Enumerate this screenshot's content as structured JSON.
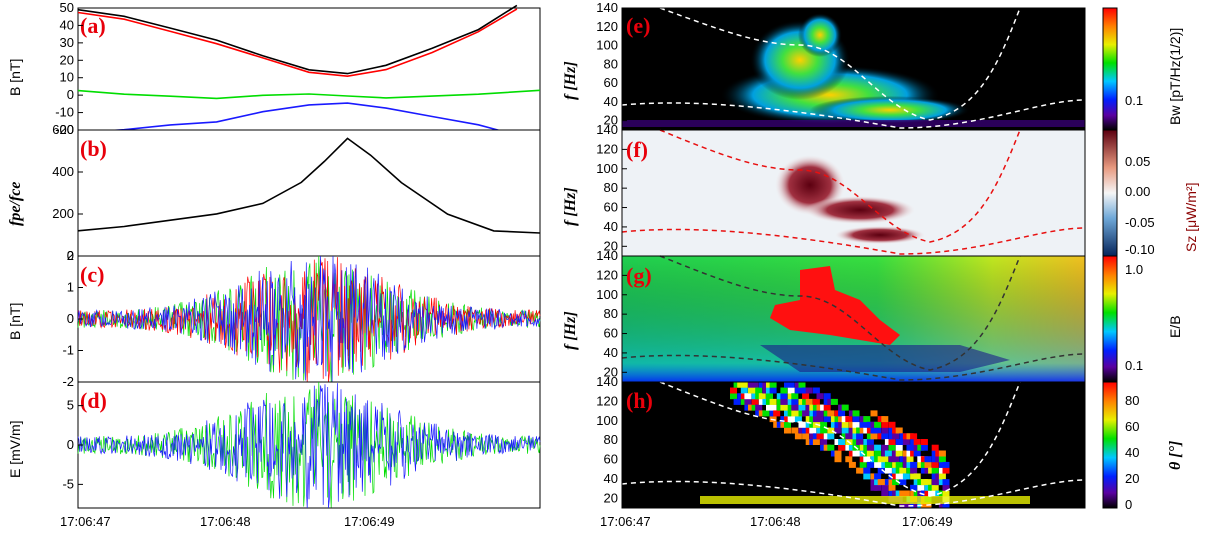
{
  "colors": {
    "bx": "#000000",
    "by": "#ff0000",
    "bz_green": "#00dd00",
    "bz_blue": "#1a1aff",
    "panel_label": "#e8000b",
    "sz_axis": "#8b0000"
  },
  "time_axis": {
    "ticks": [
      "17:06:47",
      "17:06:48",
      "17:06:49"
    ]
  },
  "chart_data": [
    {
      "panel": "a",
      "label": "(a)",
      "type": "line",
      "ylabel": "B [nT]",
      "ylim": [
        -20,
        50
      ],
      "yticks": [
        "50",
        "40",
        "30",
        "20",
        "10",
        "0",
        "-10",
        "-20"
      ],
      "series": [
        {
          "color": "#000000",
          "x": [
            0,
            0.3,
            0.6,
            0.9,
            1.2,
            1.5,
            1.75,
            2.0,
            2.3,
            2.6,
            2.85
          ],
          "y": [
            49,
            45,
            38,
            31,
            22,
            14,
            12,
            17,
            27,
            38,
            52
          ]
        },
        {
          "color": "#ff0000",
          "x": [
            0,
            0.3,
            0.6,
            0.9,
            1.2,
            1.5,
            1.75,
            2.0,
            2.3,
            2.6,
            2.85
          ],
          "y": [
            47,
            43,
            36,
            29,
            21,
            13,
            11,
            15,
            25,
            37,
            50
          ]
        },
        {
          "color": "#00dd00",
          "x": [
            0,
            0.3,
            0.6,
            0.9,
            1.2,
            1.5,
            1.75,
            2.0,
            2.3,
            2.6,
            3.0
          ],
          "y": [
            2,
            0,
            -1,
            -2,
            0,
            1,
            0,
            -1,
            0,
            1,
            3
          ]
        },
        {
          "color": "#1a1aff",
          "x": [
            0,
            0.3,
            0.6,
            0.9,
            1.2,
            1.5,
            1.75,
            2.0,
            2.3,
            2.6,
            2.8
          ],
          "y": [
            -22,
            -20,
            -17,
            -15,
            -9,
            -5,
            -4,
            -7,
            -12,
            -17,
            -22
          ]
        }
      ]
    },
    {
      "panel": "b",
      "label": "(b)",
      "type": "line",
      "ylabel": "fpe/fce",
      "ylim": [
        0,
        600
      ],
      "yticks": [
        "0",
        "200",
        "400",
        "600"
      ],
      "series": [
        {
          "color": "#000000",
          "x": [
            0,
            0.3,
            0.6,
            0.9,
            1.2,
            1.45,
            1.6,
            1.75,
            1.9,
            2.1,
            2.4,
            2.7,
            3.0
          ],
          "y": [
            120,
            140,
            170,
            200,
            250,
            350,
            450,
            560,
            480,
            350,
            200,
            120,
            110
          ]
        }
      ]
    },
    {
      "panel": "c",
      "label": "(c)",
      "type": "line",
      "ylabel": "B [nT]",
      "ylim": [
        -2,
        2
      ],
      "yticks": [
        "2",
        "1",
        "0",
        "-1",
        "-2"
      ]
    },
    {
      "panel": "d",
      "label": "(d)",
      "type": "line",
      "ylabel": "E [mV/m]",
      "ylim": [
        -8,
        8
      ],
      "yticks": [
        "5",
        "0",
        "-5"
      ]
    },
    {
      "panel": "e",
      "label": "(e)",
      "type": "heatmap",
      "ylabel": "f [Hz]",
      "ylim": [
        10,
        140
      ],
      "yticks": [
        "140",
        "120",
        "100",
        "80",
        "60",
        "40",
        "20"
      ],
      "colorbar": {
        "label": "Bw [pT/Hz(1/2)]",
        "ticks": [
          "0.1"
        ]
      }
    },
    {
      "panel": "f",
      "label": "(f)",
      "type": "heatmap",
      "ylabel": "f [Hz]",
      "ylim": [
        10,
        140
      ],
      "yticks": [
        "140",
        "120",
        "100",
        "80",
        "60",
        "40",
        "20"
      ],
      "colorbar": {
        "label": "Sz [μW/m²]",
        "ticks": [
          "0.05",
          "0.00",
          "-0.05",
          "-0.10"
        ]
      }
    },
    {
      "panel": "g",
      "label": "(g)",
      "type": "heatmap",
      "ylabel": "f [Hz]",
      "ylim": [
        10,
        140
      ],
      "yticks": [
        "140",
        "120",
        "100",
        "80",
        "60",
        "40",
        "20"
      ],
      "colorbar": {
        "label": "E/B",
        "ticks": [
          "1.0",
          "0.1"
        ]
      }
    },
    {
      "panel": "h",
      "label": "(h)",
      "type": "heatmap",
      "ylabel": "f [Hz]",
      "ylim": [
        10,
        140
      ],
      "yticks": [
        "140",
        "120",
        "100",
        "80",
        "60",
        "40",
        "20"
      ],
      "colorbar": {
        "label": "θ [°]",
        "ticks": [
          "80",
          "60",
          "40",
          "20",
          "0"
        ]
      }
    }
  ]
}
